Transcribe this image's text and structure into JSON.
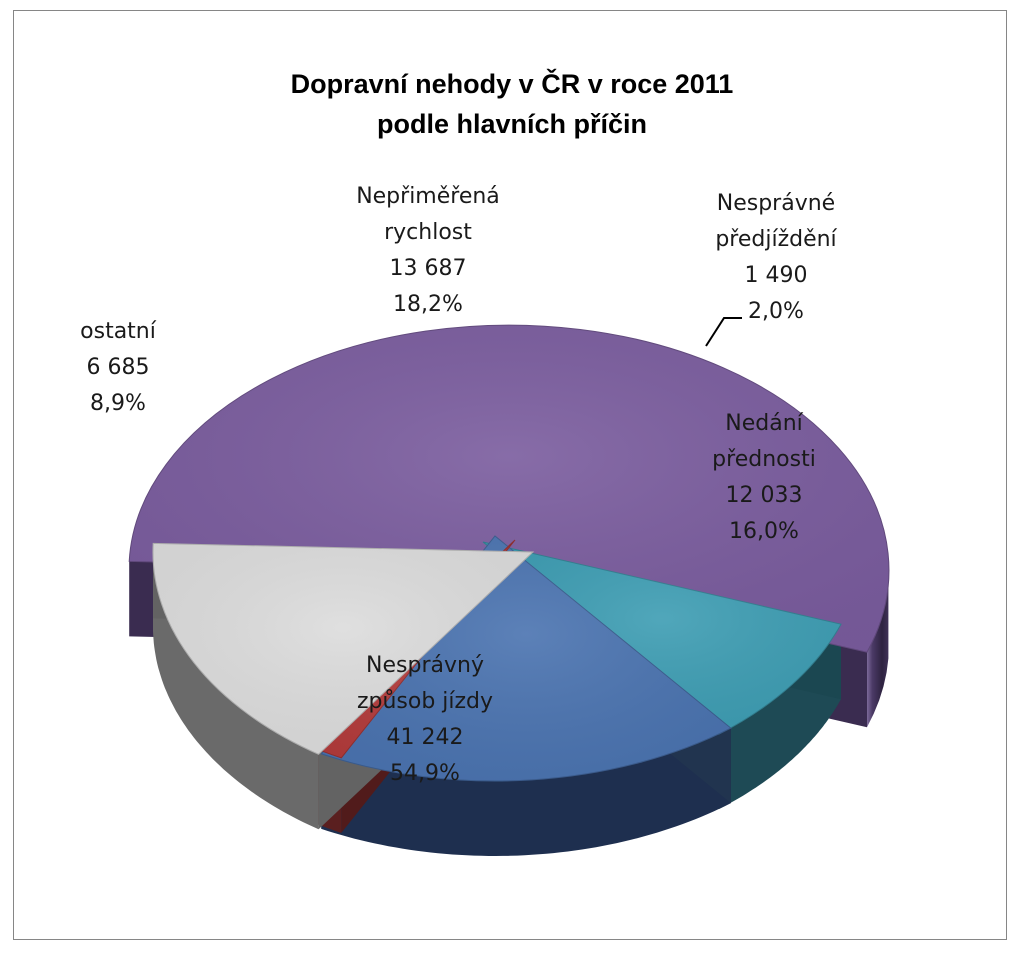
{
  "chart_data": {
    "type": "pie",
    "title_line1": "Dopravní nehody  v ČR v roce 2011",
    "title_line2": "podle hlavních příčin",
    "slices": [
      {
        "label_lines": [
          "Nesprávný",
          "způsob jízdy"
        ],
        "value_text": "41 242",
        "value": 41242,
        "percent_text": "54,9%",
        "percent": 54.9,
        "color": "#7A5C9E"
      },
      {
        "label_lines": [
          "ostatní"
        ],
        "value_text": "6 685",
        "value": 6685,
        "percent_text": "8,9%",
        "percent": 8.9,
        "color": "#3D9DB3"
      },
      {
        "label_lines": [
          "Nepřiměřená",
          "rychlost"
        ],
        "value_text": "13 687",
        "value": 13687,
        "percent_text": "18,2%",
        "percent": 18.2,
        "color": "#4A73B0"
      },
      {
        "label_lines": [
          "Nesprávné",
          "předjíždění"
        ],
        "value_text": "1 490",
        "value": 1490,
        "percent_text": "2,0%",
        "percent": 2.0,
        "color": "#B33B3B"
      },
      {
        "label_lines": [
          "Nedání",
          "přednosti"
        ],
        "value_text": "12 033",
        "value": 12033,
        "percent_text": "16,0%",
        "percent": 16.0,
        "color": "#DCDCDC"
      }
    ]
  }
}
